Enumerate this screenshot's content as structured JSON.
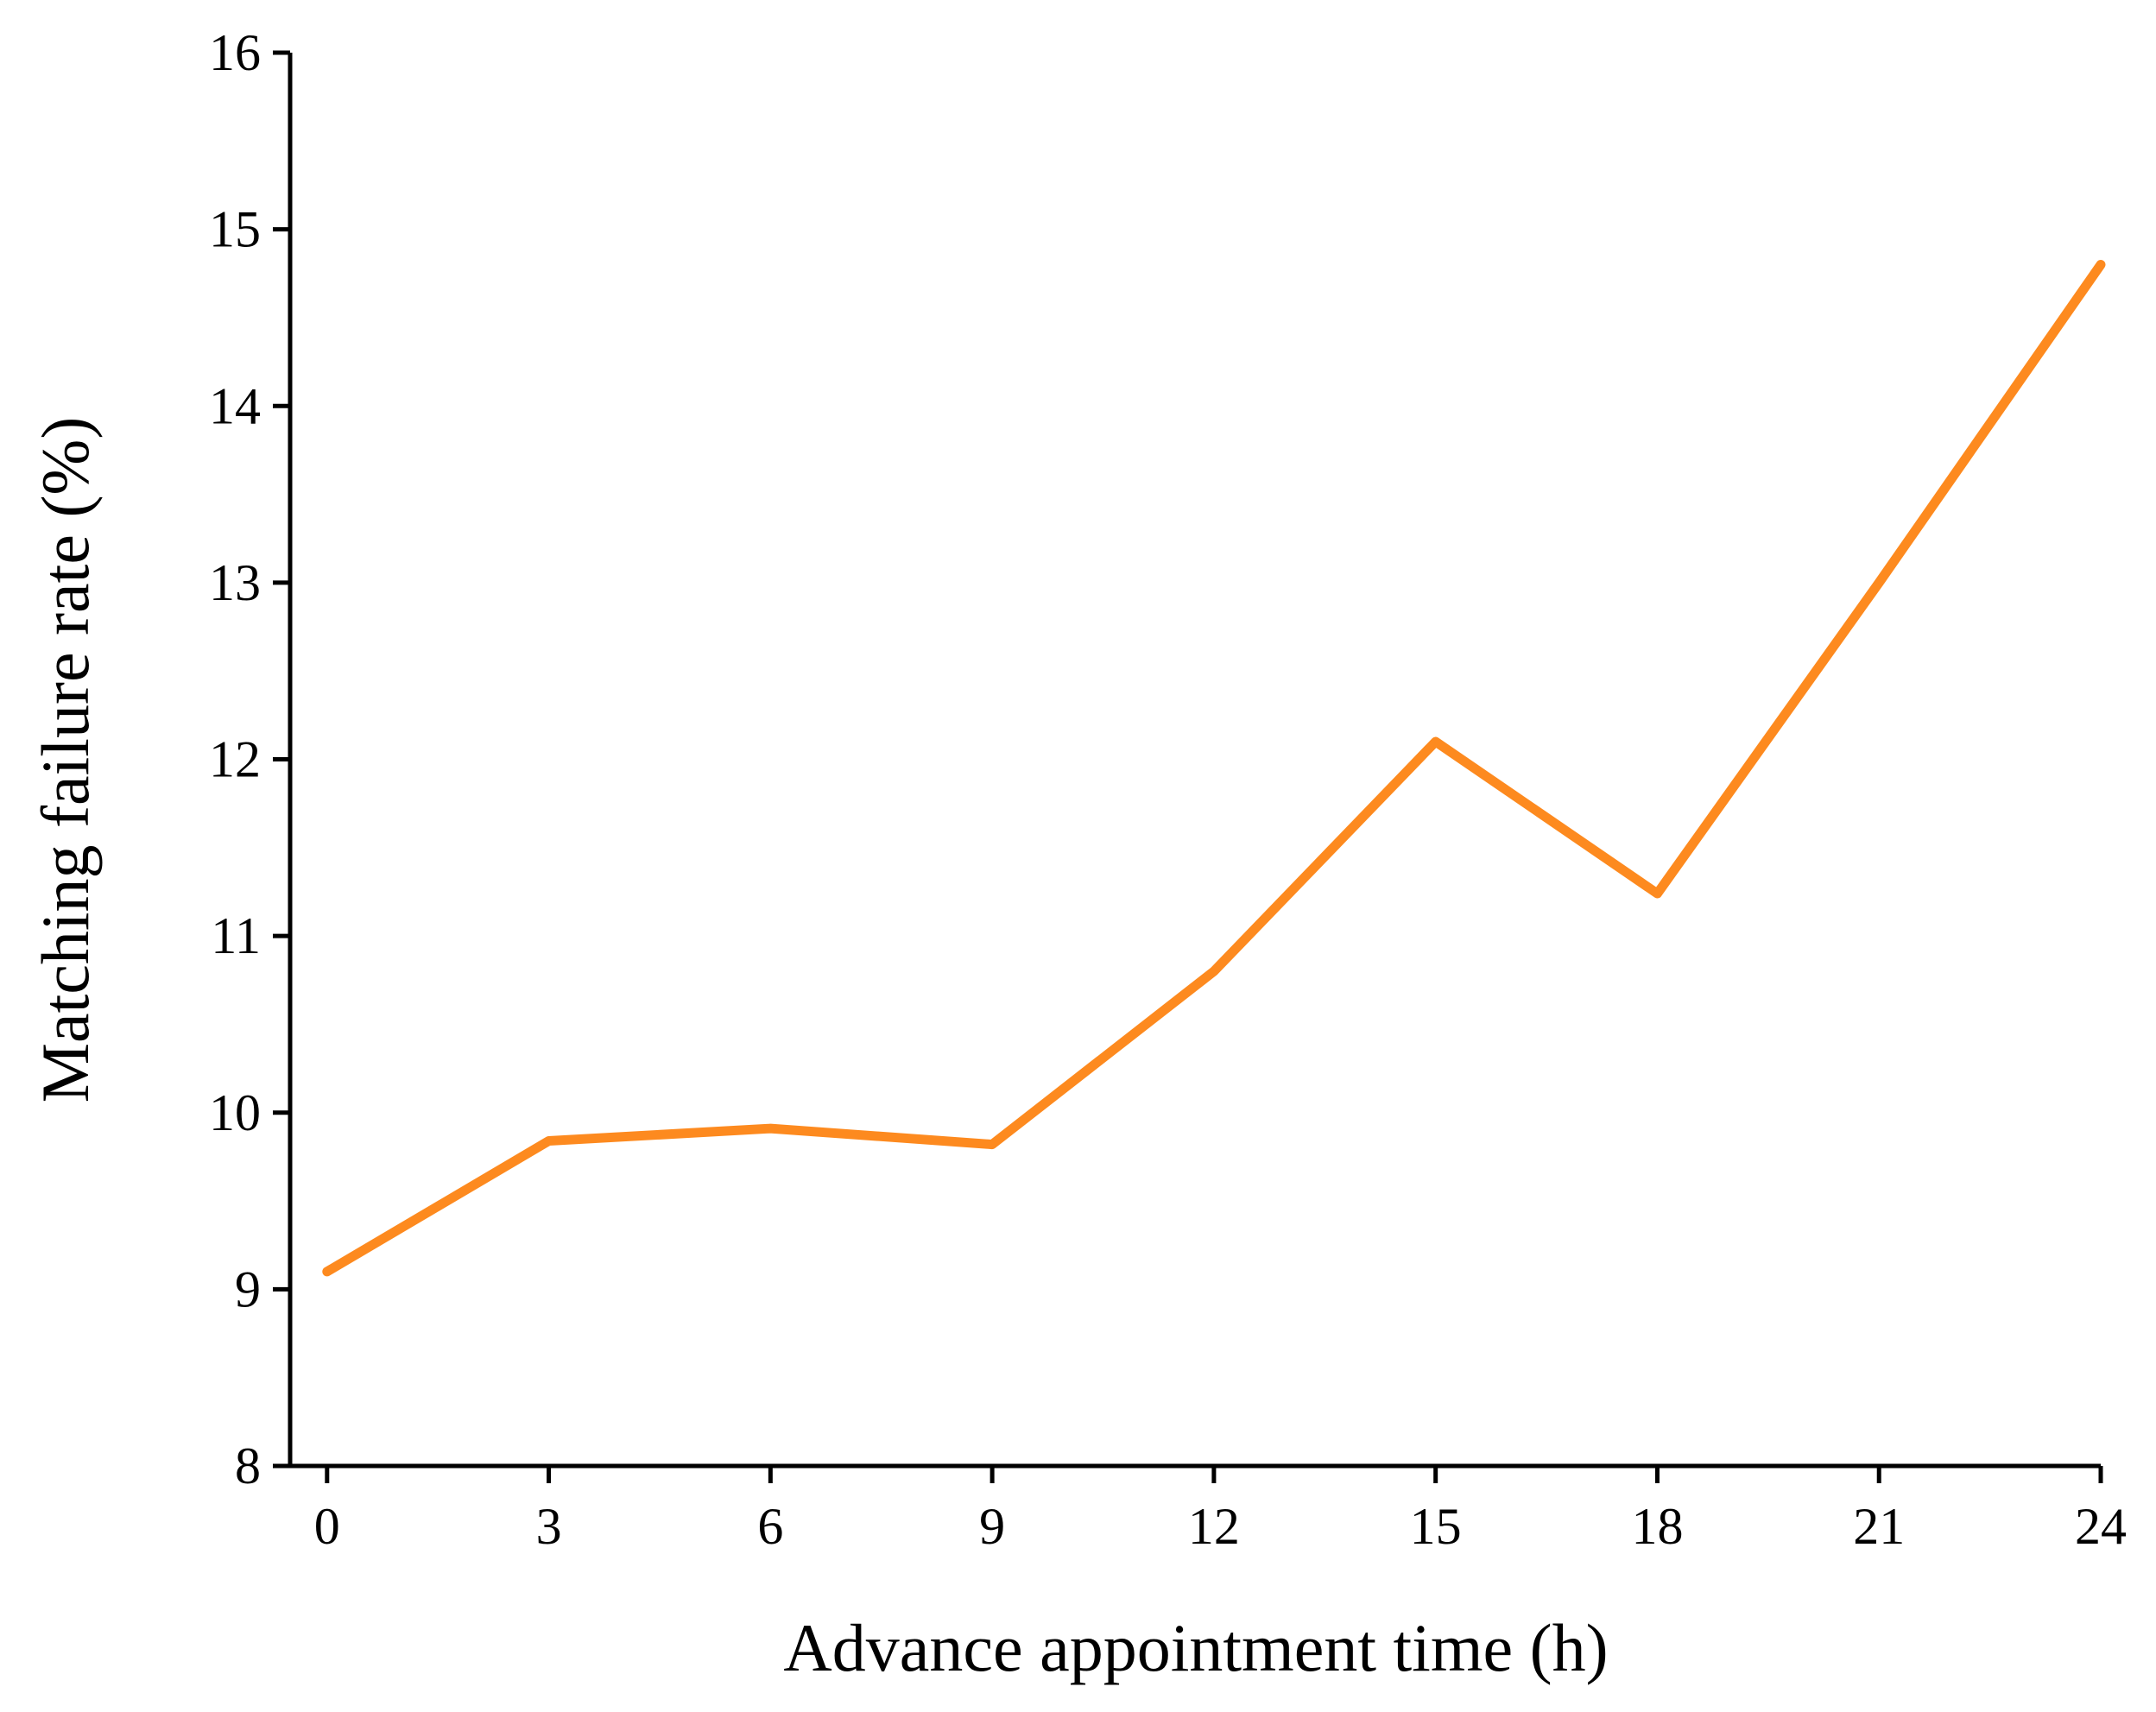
{
  "chart_data": {
    "type": "line",
    "x": [
      0,
      3,
      6,
      9,
      12,
      15,
      18,
      21,
      24
    ],
    "series": [
      {
        "color": "#fd8a1f",
        "values": [
          9.1,
          9.84,
          9.91,
          9.82,
          10.8,
          12.1,
          11.24,
          13.0,
          14.8
        ]
      }
    ],
    "x_label": "Advance appointment time (h)",
    "y_label": "Matching failure rate (%)",
    "xlim": [
      -0.5,
      24
    ],
    "xticks": [
      0,
      3,
      6,
      9,
      12,
      15,
      18,
      21,
      24
    ],
    "ylim": [
      8,
      16
    ],
    "yticks": [
      8,
      9,
      10,
      11,
      12,
      13,
      14,
      15,
      16
    ],
    "grid": false
  }
}
